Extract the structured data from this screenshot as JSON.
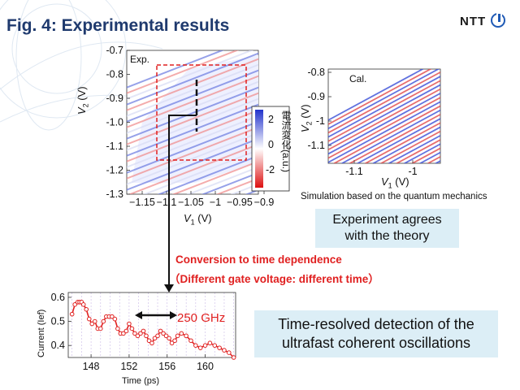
{
  "header": {
    "title": "Fig. 4: Experimental results",
    "logo_text": "NTT"
  },
  "colors": {
    "title": "#1f3a6e",
    "accent_red": "#e02020",
    "note_box": "#dceef6",
    "data_blue": "#2a3fd0"
  },
  "exp_plot": {
    "label": "Exp.",
    "ylabel_base": "V",
    "ylabel_sub": "2",
    "ylabel_unit": " (V)",
    "xlabel_base": "V",
    "xlabel_sub": "1",
    "xlabel_unit": " (V)",
    "y_ticks": [
      "-0.7",
      "-0.8",
      "-0.9",
      "-1.0",
      "-1.1",
      "-1.2",
      "-1.3"
    ],
    "x_ticks": [
      "−1.15",
      "−1.1",
      "−1.05",
      "−1",
      "−0.95",
      "−0.9"
    ],
    "colorbar_ticks": [
      "2",
      "0",
      "-2"
    ],
    "colorbar_label": "電流変化(a.u.)"
  },
  "cal_plot": {
    "label": "Cal.",
    "ylabel_base": "V",
    "ylabel_sub": "2",
    "ylabel_unit": " (V)",
    "xlabel_base": "V",
    "xlabel_sub": "1",
    "xlabel_unit": " (V)",
    "y_ticks": [
      "-0.8",
      "-0.9",
      "-1",
      "-1.1"
    ],
    "x_ticks": [
      "-1.1",
      "-1"
    ],
    "caption": "Simulation based on the quantum mechanics"
  },
  "notes": {
    "agree_line1": "Experiment agrees",
    "agree_line2": "with the theory",
    "conversion_line1": "Conversion to time dependence",
    "conversion_line2": "（Different gate voltage: different time）",
    "time_resolved_line1": "Time-resolved detection of the",
    "time_resolved_line2": "ultrafast coherent oscillations",
    "frequency": "250 GHz"
  },
  "time_plot": {
    "ylabel": "Current (Ief)",
    "xlabel": "Time (ps)"
  },
  "chart_data": {
    "type": "line",
    "xlabel": "Time (ps)",
    "ylabel": "Current (Ief)",
    "x_ticks": [
      "148",
      "152",
      "156",
      "160"
    ],
    "y_ticks": [
      "0.6",
      "0.5",
      "0.4"
    ],
    "xlim": [
      145.6,
      163.2
    ],
    "ylim": [
      0.35,
      0.62
    ],
    "series": [
      {
        "x": [
          146.0,
          146.3,
          146.6,
          146.8,
          147.0,
          147.2,
          147.5,
          147.8,
          148.1,
          148.4,
          148.7,
          149.0,
          149.3,
          149.6,
          149.9,
          150.2,
          150.5,
          150.8,
          151.1,
          151.4,
          151.7,
          152.0,
          152.3,
          152.6,
          152.9,
          153.2,
          153.5,
          153.8,
          154.1,
          154.4,
          154.7,
          155.0,
          155.3,
          155.6,
          155.9,
          156.2,
          156.5,
          156.8,
          157.1,
          157.5,
          158.0,
          158.5,
          159.0,
          159.5,
          160.0,
          160.5,
          161.0,
          161.5,
          162.0,
          162.5,
          163.0
        ],
        "values": [
          0.53,
          0.57,
          0.58,
          0.58,
          0.58,
          0.57,
          0.55,
          0.51,
          0.49,
          0.5,
          0.47,
          0.47,
          0.5,
          0.52,
          0.52,
          0.52,
          0.51,
          0.47,
          0.45,
          0.45,
          0.46,
          0.49,
          0.47,
          0.45,
          0.44,
          0.45,
          0.46,
          0.44,
          0.42,
          0.41,
          0.43,
          0.44,
          0.46,
          0.45,
          0.44,
          0.43,
          0.41,
          0.42,
          0.44,
          0.45,
          0.44,
          0.42,
          0.4,
          0.39,
          0.4,
          0.41,
          0.4,
          0.39,
          0.38,
          0.37,
          0.35
        ]
      }
    ]
  }
}
